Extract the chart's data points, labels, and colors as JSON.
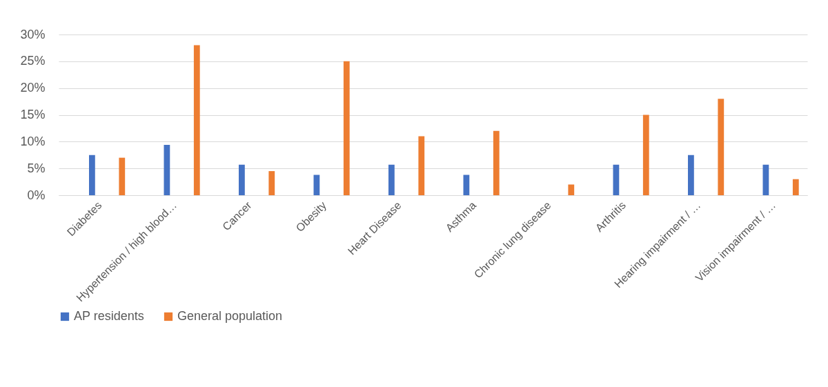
{
  "chart_data": {
    "type": "bar",
    "categories": [
      "Diabetes",
      "Hypertension / high blood…",
      "Cancer",
      "Obesity",
      "Heart Disease",
      "Asthma",
      "Chronic lung disease",
      "Arthritis",
      "Hearing impairment / …",
      "Vision impairment / …"
    ],
    "series": [
      {
        "name": "AP residents",
        "color": "#4472c4",
        "values": [
          7.5,
          9.4,
          5.7,
          3.8,
          5.7,
          3.8,
          0,
          5.7,
          7.5,
          5.7
        ]
      },
      {
        "name": "General population",
        "color": "#ed7d31",
        "values": [
          7,
          28,
          4.5,
          25,
          11,
          12,
          2,
          15,
          18,
          3
        ]
      }
    ],
    "ylim": [
      0,
      30
    ],
    "yticks": [
      {
        "value": 0,
        "label": "0%"
      },
      {
        "value": 5,
        "label": "5%"
      },
      {
        "value": 10,
        "label": "10%"
      },
      {
        "value": 15,
        "label": "15%"
      },
      {
        "value": 20,
        "label": "20%"
      },
      {
        "value": 25,
        "label": "25%"
      },
      {
        "value": 30,
        "label": "30%"
      }
    ],
    "grid": "y",
    "legend": "bottom"
  }
}
